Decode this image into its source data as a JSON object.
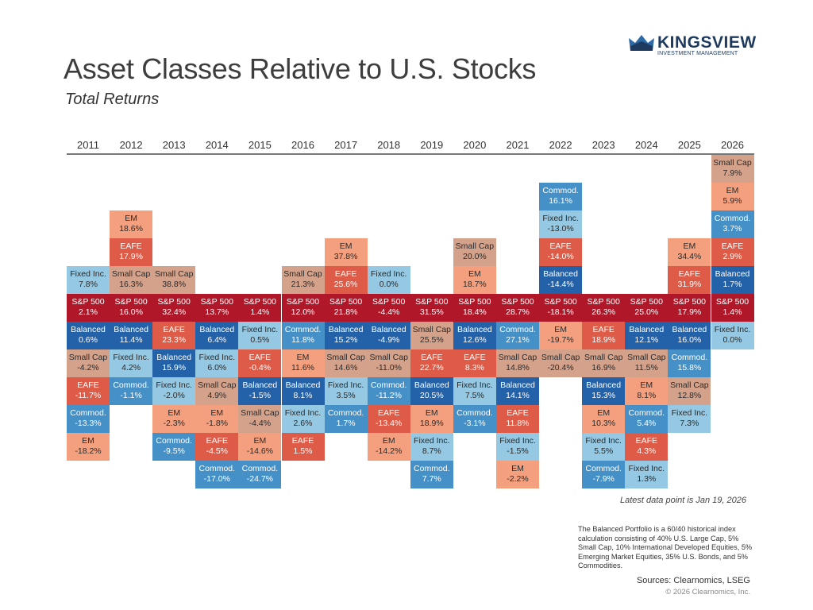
{
  "header": {
    "title": "Asset Classes Relative to U.S. Stocks",
    "subtitle": "Total Returns",
    "logo_name": "KINGSVIEW",
    "logo_sub": "INVESTMENT MANAGEMENT"
  },
  "chart_data": {
    "type": "table",
    "title": "Asset Classes Relative to U.S. Stocks",
    "subtitle": "Total Returns",
    "benchmark": "S&P 500",
    "years": [
      "2011",
      "2012",
      "2013",
      "2014",
      "2015",
      "2016",
      "2017",
      "2018",
      "2019",
      "2020",
      "2021",
      "2022",
      "2023",
      "2024",
      "2025",
      "2026"
    ],
    "colors": {
      "S&P 500": "#b01829",
      "Balanced": "#2361a8",
      "Commod.": "#4590c6",
      "Fixed Inc.": "#95c8e2",
      "Small Cap": "#d4a28b",
      "EM": "#f4a07f",
      "EAFE": "#dd5b47"
    },
    "dark_text_assets": [
      "Fixed Inc.",
      "Small Cap",
      "EM"
    ],
    "columns": [
      {
        "above": [
          [
            "Fixed Inc.",
            "7.8%"
          ]
        ],
        "sp": "2.1%",
        "below": [
          [
            "Balanced",
            "0.6%"
          ],
          [
            "Small Cap",
            "-4.2%"
          ],
          [
            "EAFE",
            "-11.7%"
          ],
          [
            "Commod.",
            "-13.3%"
          ],
          [
            "EM",
            "-18.2%"
          ]
        ]
      },
      {
        "above": [
          [
            "EM",
            "18.6%"
          ],
          [
            "EAFE",
            "17.9%"
          ],
          [
            "Small Cap",
            "16.3%"
          ]
        ],
        "sp": "16.0%",
        "below": [
          [
            "Balanced",
            "11.4%"
          ],
          [
            "Fixed Inc.",
            "4.2%"
          ],
          [
            "Commod.",
            "-1.1%"
          ]
        ]
      },
      {
        "above": [
          [
            "Small Cap",
            "38.8%"
          ]
        ],
        "sp": "32.4%",
        "below": [
          [
            "EAFE",
            "23.3%"
          ],
          [
            "Balanced",
            "15.9%"
          ],
          [
            "Fixed Inc.",
            "-2.0%"
          ],
          [
            "EM",
            "-2.3%"
          ],
          [
            "Commod.",
            "-9.5%"
          ]
        ]
      },
      {
        "above": [],
        "sp": "13.7%",
        "below": [
          [
            "Balanced",
            "6.4%"
          ],
          [
            "Fixed Inc.",
            "6.0%"
          ],
          [
            "Small Cap",
            "4.9%"
          ],
          [
            "EM",
            "-1.8%"
          ],
          [
            "EAFE",
            "-4.5%"
          ],
          [
            "Commod.",
            "-17.0%"
          ]
        ]
      },
      {
        "above": [],
        "sp": "1.4%",
        "below": [
          [
            "Fixed Inc.",
            "0.5%"
          ],
          [
            "EAFE",
            "-0.4%"
          ],
          [
            "Balanced",
            "-1.5%"
          ],
          [
            "Small Cap",
            "-4.4%"
          ],
          [
            "EM",
            "-14.6%"
          ],
          [
            "Commod.",
            "-24.7%"
          ]
        ]
      },
      {
        "above": [
          [
            "Small Cap",
            "21.3%"
          ]
        ],
        "sp": "12.0%",
        "below": [
          [
            "Commod.",
            "11.8%"
          ],
          [
            "EM",
            "11.6%"
          ],
          [
            "Balanced",
            "8.1%"
          ],
          [
            "Fixed Inc.",
            "2.6%"
          ],
          [
            "EAFE",
            "1.5%"
          ]
        ]
      },
      {
        "above": [
          [
            "EM",
            "37.8%"
          ],
          [
            "EAFE",
            "25.6%"
          ]
        ],
        "sp": "21.8%",
        "below": [
          [
            "Balanced",
            "15.2%"
          ],
          [
            "Small Cap",
            "14.6%"
          ],
          [
            "Fixed Inc.",
            "3.5%"
          ],
          [
            "Commod.",
            "1.7%"
          ]
        ]
      },
      {
        "above": [
          [
            "Fixed Inc.",
            "0.0%"
          ]
        ],
        "sp": "-4.4%",
        "below": [
          [
            "Balanced",
            "-4.9%"
          ],
          [
            "Small Cap",
            "-11.0%"
          ],
          [
            "Commod.",
            "-11.2%"
          ],
          [
            "EAFE",
            "-13.4%"
          ],
          [
            "EM",
            "-14.2%"
          ]
        ]
      },
      {
        "above": [],
        "sp": "31.5%",
        "below": [
          [
            "Small Cap",
            "25.5%"
          ],
          [
            "EAFE",
            "22.7%"
          ],
          [
            "Balanced",
            "20.5%"
          ],
          [
            "EM",
            "18.9%"
          ],
          [
            "Fixed Inc.",
            "8.7%"
          ],
          [
            "Commod.",
            "7.7%"
          ]
        ]
      },
      {
        "above": [
          [
            "Small Cap",
            "20.0%"
          ],
          [
            "EM",
            "18.7%"
          ]
        ],
        "sp": "18.4%",
        "below": [
          [
            "Balanced",
            "12.6%"
          ],
          [
            "EAFE",
            "8.3%"
          ],
          [
            "Fixed Inc.",
            "7.5%"
          ],
          [
            "Commod.",
            "-3.1%"
          ]
        ]
      },
      {
        "above": [],
        "sp": "28.7%",
        "below": [
          [
            "Commod.",
            "27.1%"
          ],
          [
            "Small Cap",
            "14.8%"
          ],
          [
            "Balanced",
            "14.1%"
          ],
          [
            "EAFE",
            "11.8%"
          ],
          [
            "Fixed Inc.",
            "-1.5%"
          ],
          [
            "EM",
            "-2.2%"
          ]
        ]
      },
      {
        "above": [
          [
            "Commod.",
            "16.1%"
          ],
          [
            "Fixed Inc.",
            "-13.0%"
          ],
          [
            "EAFE",
            "-14.0%"
          ],
          [
            "Balanced",
            "-14.4%"
          ]
        ],
        "sp": "-18.1%",
        "below": [
          [
            "EM",
            "-19.7%"
          ],
          [
            "Small Cap",
            "-20.4%"
          ]
        ]
      },
      {
        "above": [],
        "sp": "26.3%",
        "below": [
          [
            "EAFE",
            "18.9%"
          ],
          [
            "Small Cap",
            "16.9%"
          ],
          [
            "Balanced",
            "15.3%"
          ],
          [
            "EM",
            "10.3%"
          ],
          [
            "Fixed Inc.",
            "5.5%"
          ],
          [
            "Commod.",
            "-7.9%"
          ]
        ]
      },
      {
        "above": [],
        "sp": "25.0%",
        "below": [
          [
            "Balanced",
            "12.1%"
          ],
          [
            "Small Cap",
            "11.5%"
          ],
          [
            "EM",
            "8.1%"
          ],
          [
            "Commod.",
            "5.4%"
          ],
          [
            "EAFE",
            "4.3%"
          ],
          [
            "Fixed Inc.",
            "1.3%"
          ]
        ]
      },
      {
        "above": [
          [
            "EM",
            "34.4%"
          ],
          [
            "EAFE",
            "31.9%"
          ]
        ],
        "sp": "17.9%",
        "below": [
          [
            "Balanced",
            "16.0%"
          ],
          [
            "Commod.",
            "15.8%"
          ],
          [
            "Small Cap",
            "12.8%"
          ],
          [
            "Fixed Inc.",
            "7.3%"
          ]
        ]
      },
      {
        "above": [
          [
            "Small Cap",
            "7.9%"
          ],
          [
            "EM",
            "5.9%"
          ],
          [
            "Commod.",
            "3.7%"
          ],
          [
            "EAFE",
            "2.9%"
          ],
          [
            "Balanced",
            "1.7%"
          ]
        ],
        "sp": "1.4%",
        "below": [
          [
            "Fixed Inc.",
            "0.0%"
          ]
        ]
      }
    ]
  },
  "notes": {
    "latest": "Latest data point is Jan 19, 2026",
    "footnote": "The Balanced Portfolio is a 60/40 historical index calculation consisting of 40% U.S. Large Cap, 5% Small Cap, 10% International Developed Equities, 5% Emerging Market Equities, 35% U.S. Bonds, and 5% Commodities.",
    "sources": "Sources: Clearnomics, LSEG",
    "copyright": "© 2026 Clearnomics, Inc."
  }
}
